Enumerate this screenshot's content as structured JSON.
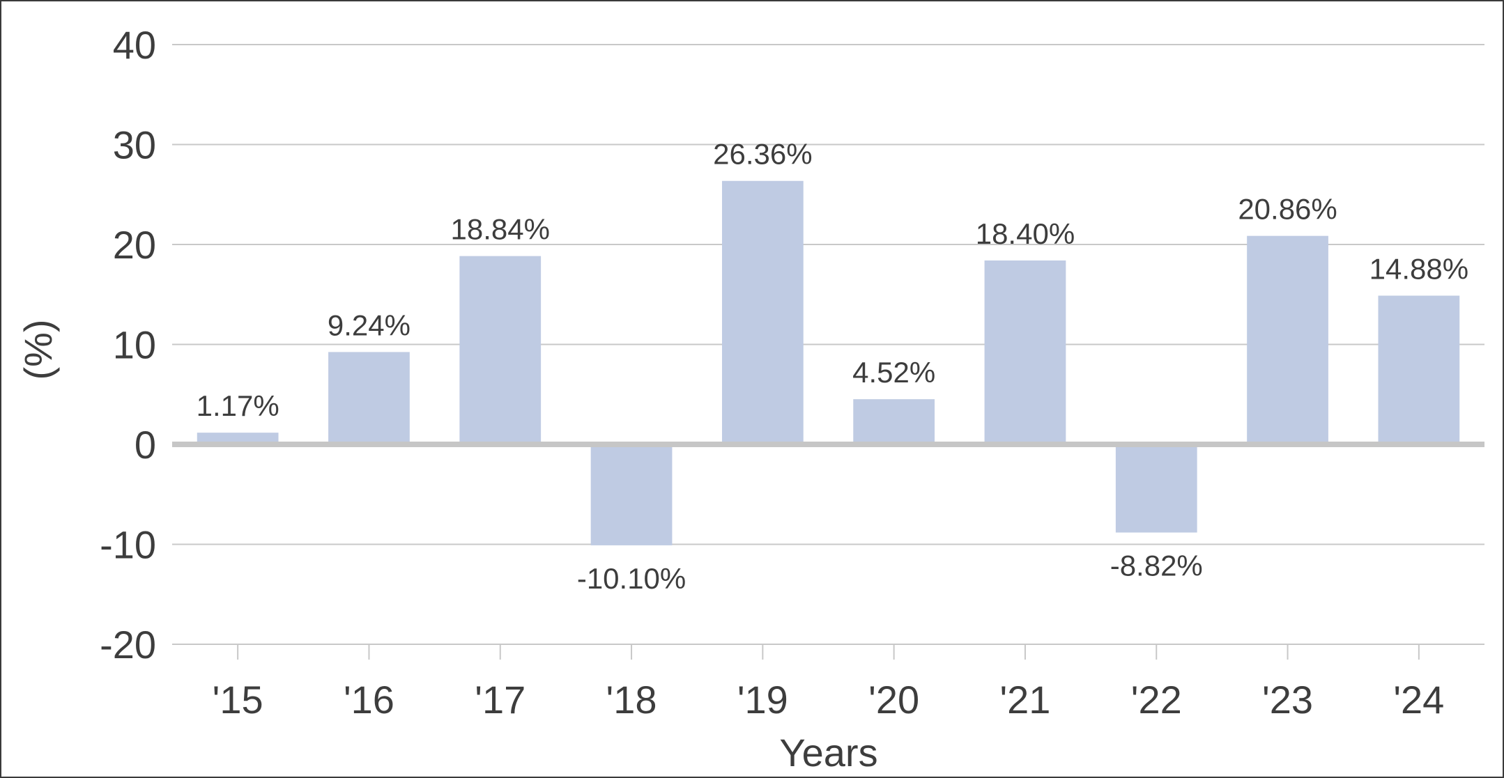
{
  "chart_data": {
    "type": "bar",
    "title": "",
    "xlabel": "Years",
    "ylabel": "(%)",
    "categories": [
      "'15",
      "'16",
      "'17",
      "'18",
      "'19",
      "'20",
      "'21",
      "'22",
      "'23",
      "'24"
    ],
    "values": [
      1.17,
      9.24,
      18.84,
      -10.1,
      26.36,
      4.52,
      18.4,
      -8.82,
      20.86,
      14.88
    ],
    "data_labels": [
      "1.17%",
      "9.24%",
      "18.84%",
      "-10.10%",
      "26.36%",
      "4.52%",
      "18.40%",
      "-8.82%",
      "20.86%",
      "14.88%"
    ],
    "ylim": [
      -20,
      40
    ],
    "yticks": [
      40,
      30,
      20,
      10,
      0,
      -10,
      -20
    ],
    "grid": "horizontal",
    "legend": "none"
  },
  "colors": {
    "bar": "#bfcbe3",
    "grid": "#c8c8c8",
    "zero_line": "#c6c6c6",
    "text": "#3d3d3d"
  }
}
